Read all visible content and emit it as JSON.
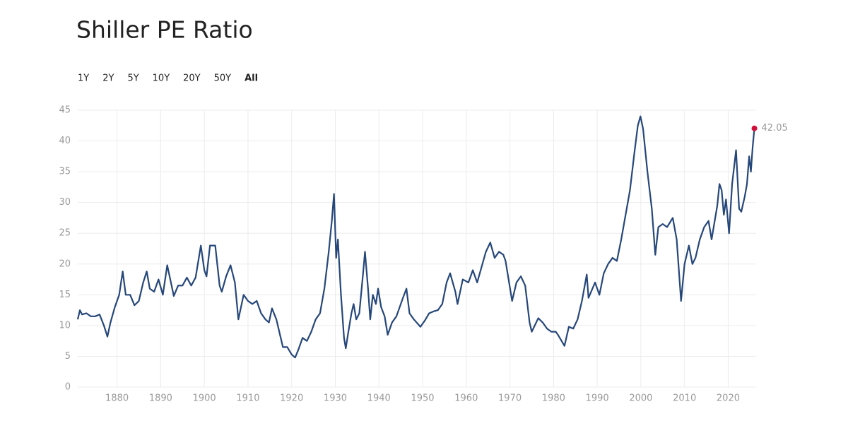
{
  "range_selector": {
    "options": [
      "1Y",
      "2Y",
      "5Y",
      "10Y",
      "20Y",
      "50Y",
      "All"
    ],
    "selected": 6
  },
  "chart_data": {
    "type": "line",
    "title": "Shiller PE Ratio",
    "x": [
      1871,
      1871.5,
      1872,
      1873,
      1874,
      1875,
      1876,
      1877,
      1877.8,
      1878.5,
      1879.5,
      1880.5,
      1881.3,
      1882,
      1883,
      1884,
      1885,
      1886,
      1886.8,
      1887.5,
      1888.5,
      1889.5,
      1890.5,
      1891.5,
      1892.5,
      1893,
      1894,
      1895,
      1896,
      1897,
      1898,
      1899.2,
      1900,
      1900.5,
      1901.3,
      1902.5,
      1903.5,
      1904,
      1905,
      1906,
      1907,
      1907.8,
      1909,
      1910,
      1911,
      1912,
      1913,
      1914,
      1914.8,
      1915.5,
      1916.5,
      1917.5,
      1918,
      1919,
      1920,
      1920.8,
      1921.5,
      1922.5,
      1923.5,
      1924.5,
      1925.5,
      1926.5,
      1927.5,
      1928.5,
      1929.2,
      1929.7,
      1930.2,
      1930.6,
      1931.3,
      1932,
      1932.4,
      1933,
      1933.7,
      1934.2,
      1934.8,
      1935.5,
      1936.3,
      1936.8,
      1937.5,
      1938,
      1938.6,
      1939.3,
      1939.8,
      1940.5,
      1941.3,
      1942,
      1943,
      1944,
      1945.5,
      1946.3,
      1947,
      1948,
      1949.5,
      1950.5,
      1951.5,
      1952.5,
      1953.5,
      1954.5,
      1955.5,
      1956.3,
      1957.5,
      1958,
      1959.2,
      1960.5,
      1961.5,
      1962.5,
      1963.5,
      1964.5,
      1965.5,
      1966.5,
      1967.5,
      1968.5,
      1969,
      1970.5,
      1971.5,
      1972.5,
      1973.5,
      1974.5,
      1975,
      1976.5,
      1977.5,
      1978.5,
      1979.5,
      1980.5,
      1981,
      1982.5,
      1983.5,
      1984.5,
      1985.5,
      1986.5,
      1987.6,
      1988,
      1989.5,
      1990.5,
      1991.5,
      1992.5,
      1993.5,
      1994.5,
      1995.5,
      1996.5,
      1997.5,
      1998.5,
      1999.3,
      1999.9,
      2000.5,
      2001.5,
      2002.5,
      2003.3,
      2004,
      2005,
      2006,
      2007.3,
      2008.2,
      2009.2,
      2010,
      2011,
      2011.8,
      2012.5,
      2013.5,
      2014.5,
      2015.5,
      2016.2,
      2017.5,
      2018,
      2018.5,
      2019,
      2019.5,
      2020.2,
      2020.9,
      2021.8,
      2022.5,
      2023,
      2023.8,
      2024.3,
      2024.8,
      2025.2,
      2025.6,
      2026
    ],
    "series": [
      {
        "name": "Shiller PE Ratio",
        "color": "#26477a",
        "values": [
          11,
          12.5,
          11.8,
          12,
          11.5,
          11.5,
          11.8,
          10,
          8.2,
          10.5,
          13,
          15,
          18.8,
          15,
          15,
          13.3,
          14,
          17,
          18.8,
          16,
          15.5,
          17.5,
          15,
          19.8,
          16.5,
          14.8,
          16.5,
          16.5,
          17.8,
          16.5,
          17.8,
          23,
          19,
          18,
          23,
          23,
          16.5,
          15.5,
          18,
          19.8,
          17,
          11,
          15,
          14,
          13.5,
          14,
          12,
          11,
          10.5,
          12.8,
          11,
          8,
          6.5,
          6.5,
          5.3,
          4.8,
          6,
          8,
          7.5,
          9,
          11,
          12,
          16,
          22,
          27,
          31.4,
          21,
          24,
          15,
          8,
          6.3,
          9,
          12,
          13.5,
          11,
          12,
          18,
          22,
          16,
          11,
          15,
          13.5,
          16,
          13,
          11.5,
          8.5,
          10.5,
          11.5,
          14.5,
          16,
          12,
          11,
          9.8,
          10.8,
          12,
          12.3,
          12.5,
          13.5,
          17,
          18.5,
          15.5,
          13.5,
          17.5,
          17,
          19,
          17,
          19.5,
          22,
          23.5,
          21,
          22,
          21.5,
          20.5,
          14,
          17,
          18,
          16.5,
          10.5,
          9,
          11.2,
          10.5,
          9.5,
          9,
          9,
          8.5,
          6.7,
          9.8,
          9.5,
          11,
          14,
          18.3,
          14.5,
          17,
          15,
          18.5,
          20,
          21,
          20.5,
          24,
          28,
          32,
          38,
          42.5,
          44,
          42,
          35,
          29,
          21.5,
          26,
          26.5,
          26,
          27.5,
          24,
          14,
          20,
          23,
          20,
          21,
          24,
          26,
          27,
          24,
          29.5,
          33,
          32,
          28,
          30.5,
          25,
          33,
          38.5,
          29,
          28.5,
          31,
          33,
          37.5,
          35,
          39,
          42.05
        ]
      }
    ],
    "marker_color": "#d0103a",
    "xlim": [
      1871,
      2026.4
    ],
    "ylim": [
      0,
      45
    ],
    "xticks": [
      1880,
      1890,
      1900,
      1910,
      1920,
      1930,
      1940,
      1950,
      1960,
      1970,
      1980,
      1990,
      2000,
      2010,
      2020
    ],
    "yticks": [
      0,
      5,
      10,
      15,
      20,
      25,
      30,
      35,
      40,
      45
    ],
    "grid": true
  }
}
